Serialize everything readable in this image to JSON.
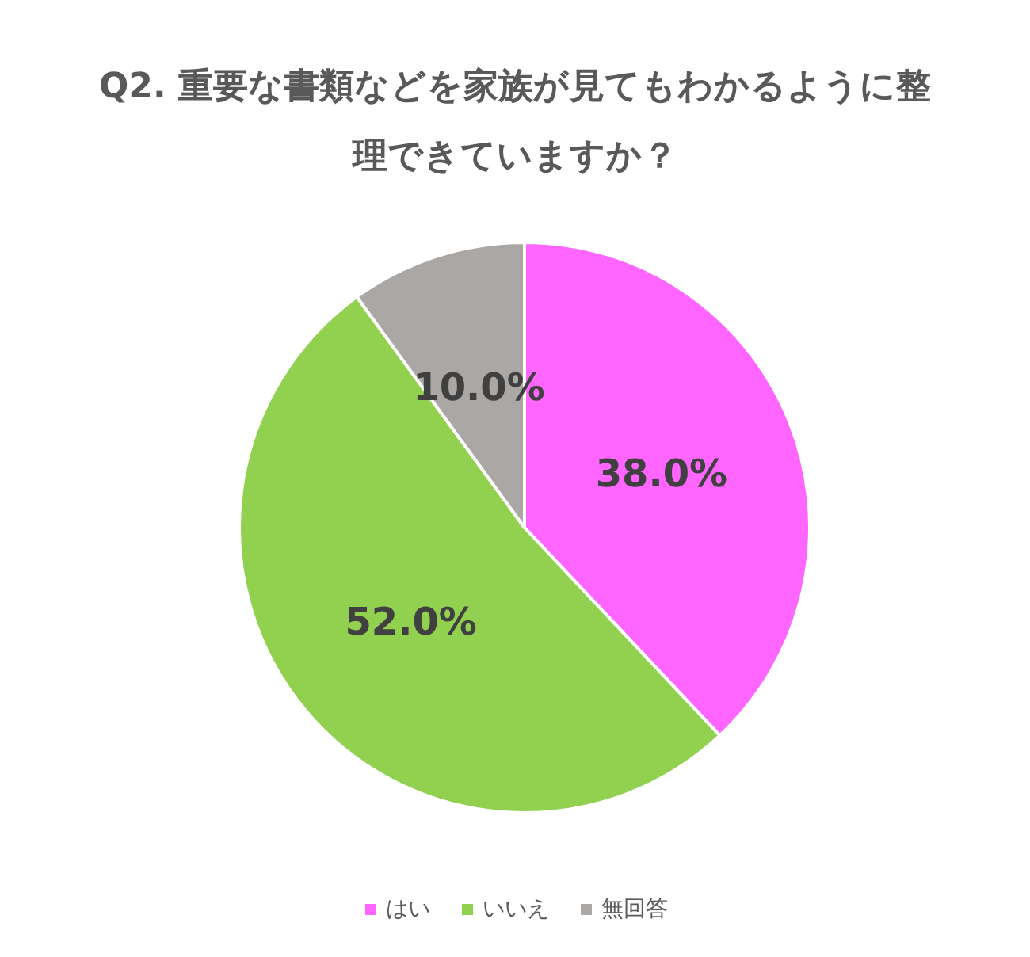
{
  "chart_data": {
    "type": "pie",
    "title": "Q2. 重要な書類などを家族が見てもわかるように整理できていますか？",
    "categories": [
      "はい",
      "いいえ",
      "無回答"
    ],
    "values": [
      38,
      52,
      10
    ],
    "colors": [
      "#ff66ff",
      "#92d050",
      "#aba7a5"
    ],
    "value_labels": [
      "38.0%",
      "52.0%",
      "10.0%"
    ],
    "legend": "bottom"
  }
}
